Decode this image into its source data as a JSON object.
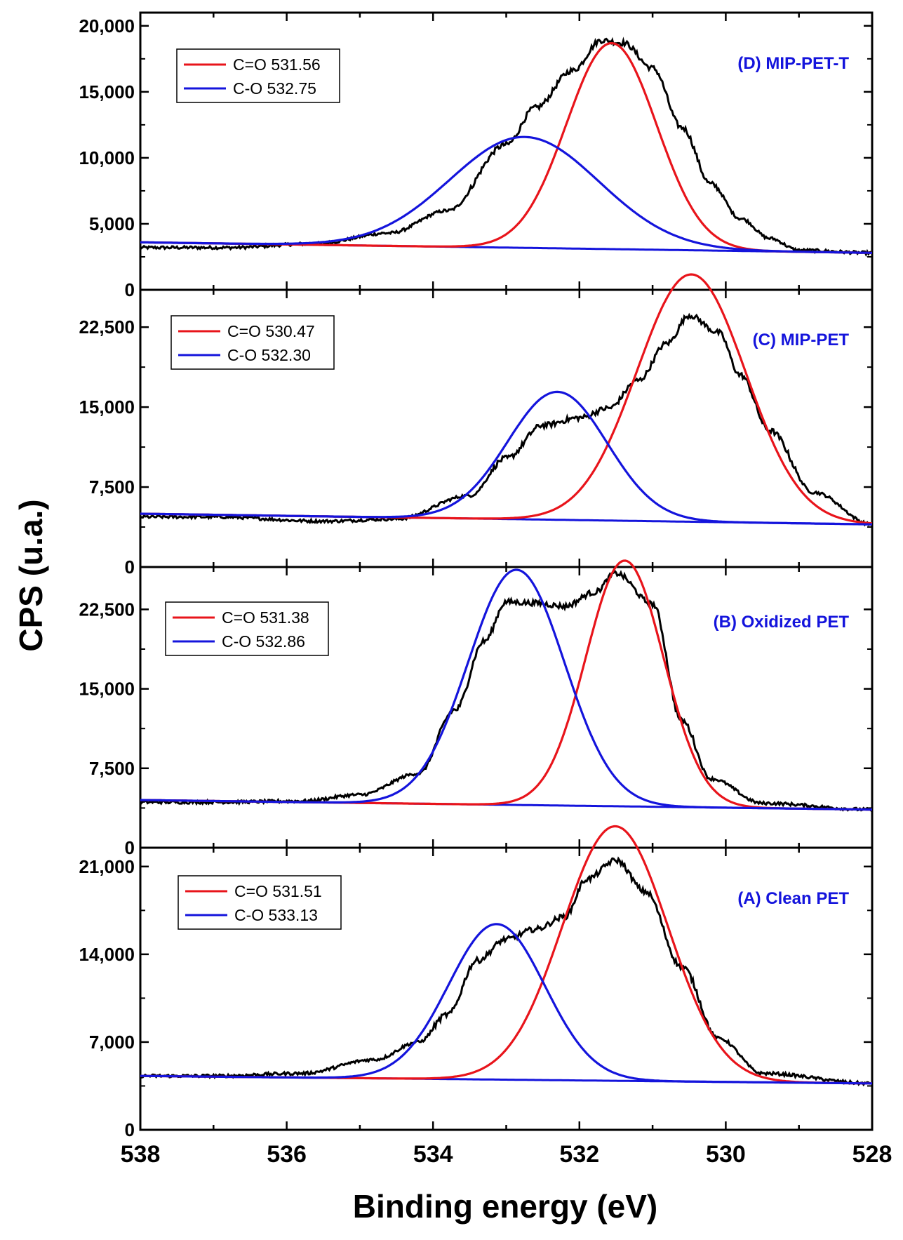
{
  "chart_data": {
    "type": "line",
    "title": "",
    "xlabel": "Binding energy (eV)",
    "ylabel": "CPS (u.a.)",
    "xlim": [
      538,
      528
    ],
    "x_reversed": true,
    "x_ticks": [
      538,
      536,
      534,
      532,
      530,
      528
    ],
    "x_tick_labels": [
      "538",
      "536",
      "534",
      "532",
      "530",
      "528"
    ],
    "colors": {
      "measured": "#000000",
      "co_double": "#e8141b",
      "co_single": "#1414dc"
    },
    "panels": [
      {
        "id": "D",
        "label": "(D) MIP-PET-T",
        "ylim": [
          0,
          21000
        ],
        "y_ticks": [
          0,
          5000,
          10000,
          15000,
          20000
        ],
        "y_tick_labels": [
          "0",
          "5,000",
          "10,000",
          "15,000",
          "20,000"
        ],
        "baseline_start": 3600,
        "baseline_end": 2800,
        "series": [
          {
            "name": "C=O 531.56",
            "legend": "C=O 531.56",
            "center": 531.56,
            "peak": 15600,
            "fwhm": 1.45
          },
          {
            "name": "C-O 532.75",
            "legend": "C-O 532.75",
            "center": 532.75,
            "peak": 8400,
            "fwhm": 2.4
          }
        ],
        "measured_points": [
          [
            536.8,
            3200
          ],
          [
            535.6,
            3500
          ],
          [
            534.6,
            4300
          ],
          [
            533.8,
            6000
          ],
          [
            533.0,
            11000
          ],
          [
            532.6,
            13800
          ],
          [
            532.1,
            16600
          ],
          [
            531.7,
            18900
          ],
          [
            531.4,
            18700
          ],
          [
            531.0,
            16800
          ],
          [
            530.6,
            12300
          ],
          [
            530.2,
            8000
          ],
          [
            529.8,
            5400
          ],
          [
            529.4,
            3900
          ],
          [
            529.0,
            3000
          ],
          [
            528.0,
            2800
          ]
        ]
      },
      {
        "id": "C",
        "label": "(C) MIP-PET",
        "ylim": [
          0,
          26000
        ],
        "y_ticks": [
          0,
          7500,
          15000,
          22500
        ],
        "y_tick_labels": [
          "0",
          "7,500",
          "15,000",
          "22,500"
        ],
        "baseline_start": 5000,
        "baseline_end": 4000,
        "series": [
          {
            "name": "C=O 530.47",
            "legend": "C=O 530.47",
            "center": 530.47,
            "peak": 23200,
            "fwhm": 1.75
          },
          {
            "name": "C-O 532.30",
            "legend": "C-O 532.30",
            "center": 532.3,
            "peak": 12000,
            "fwhm": 1.6
          }
        ],
        "measured_points": [
          [
            537.0,
            4700
          ],
          [
            535.5,
            4300
          ],
          [
            534.5,
            4500
          ],
          [
            533.5,
            6700
          ],
          [
            533.0,
            10200
          ],
          [
            532.5,
            13300
          ],
          [
            532.0,
            14000
          ],
          [
            531.6,
            14900
          ],
          [
            531.2,
            17500
          ],
          [
            530.8,
            21000
          ],
          [
            530.5,
            23600
          ],
          [
            530.1,
            22000
          ],
          [
            529.8,
            18000
          ],
          [
            529.4,
            12800
          ],
          [
            528.8,
            7000
          ],
          [
            528.0,
            4000
          ]
        ]
      },
      {
        "id": "B",
        "label": "(B) Oxidized PET",
        "ylim": [
          0,
          26500
        ],
        "y_ticks": [
          0,
          7500,
          15000,
          22500
        ],
        "y_tick_labels": [
          "0",
          "7,500",
          "15,000",
          "22,500"
        ],
        "baseline_start": 4500,
        "baseline_end": 3600,
        "series": [
          {
            "name": "C=O 531.38",
            "legend": "C=O 531.38",
            "center": 531.38,
            "peak": 23200,
            "fwhm": 1.25
          },
          {
            "name": "C-O 532.86",
            "legend": "C-O 532.86",
            "center": 532.86,
            "peak": 22200,
            "fwhm": 1.55
          }
        ],
        "measured_points": [
          [
            537.0,
            4300
          ],
          [
            535.8,
            4400
          ],
          [
            535.0,
            5000
          ],
          [
            534.2,
            7000
          ],
          [
            533.7,
            13000
          ],
          [
            533.3,
            19500
          ],
          [
            533.0,
            23200
          ],
          [
            532.6,
            23100
          ],
          [
            532.2,
            22800
          ],
          [
            531.8,
            24100
          ],
          [
            531.5,
            25900
          ],
          [
            531.0,
            23000
          ],
          [
            530.6,
            12000
          ],
          [
            530.2,
            6500
          ],
          [
            529.5,
            4200
          ],
          [
            528.0,
            3600
          ]
        ]
      },
      {
        "id": "A",
        "label": "(A) Clean PET",
        "ylim": [
          0,
          22500
        ],
        "y_ticks": [
          0,
          7000,
          14000,
          21000
        ],
        "y_tick_labels": [
          "0",
          "7,000",
          "14,000",
          "21,000"
        ],
        "baseline_start": 4300,
        "baseline_end": 3700,
        "series": [
          {
            "name": "C=O 531.51",
            "legend": "C=O 531.51",
            "center": 531.51,
            "peak": 20300,
            "fwhm": 1.7
          },
          {
            "name": "C-O 533.13",
            "legend": "C-O 533.13",
            "center": 533.13,
            "peak": 12400,
            "fwhm": 1.55
          }
        ],
        "measured_points": [
          [
            537.0,
            4300
          ],
          [
            535.8,
            4500
          ],
          [
            534.8,
            5600
          ],
          [
            534.2,
            7000
          ],
          [
            533.8,
            9200
          ],
          [
            533.4,
            13500
          ],
          [
            533.0,
            15200
          ],
          [
            532.6,
            16000
          ],
          [
            532.2,
            17000
          ],
          [
            531.9,
            20000
          ],
          [
            531.5,
            21500
          ],
          [
            531.1,
            19000
          ],
          [
            530.6,
            13000
          ],
          [
            530.1,
            7300
          ],
          [
            529.5,
            4500
          ],
          [
            528.0,
            3700
          ]
        ]
      }
    ]
  }
}
